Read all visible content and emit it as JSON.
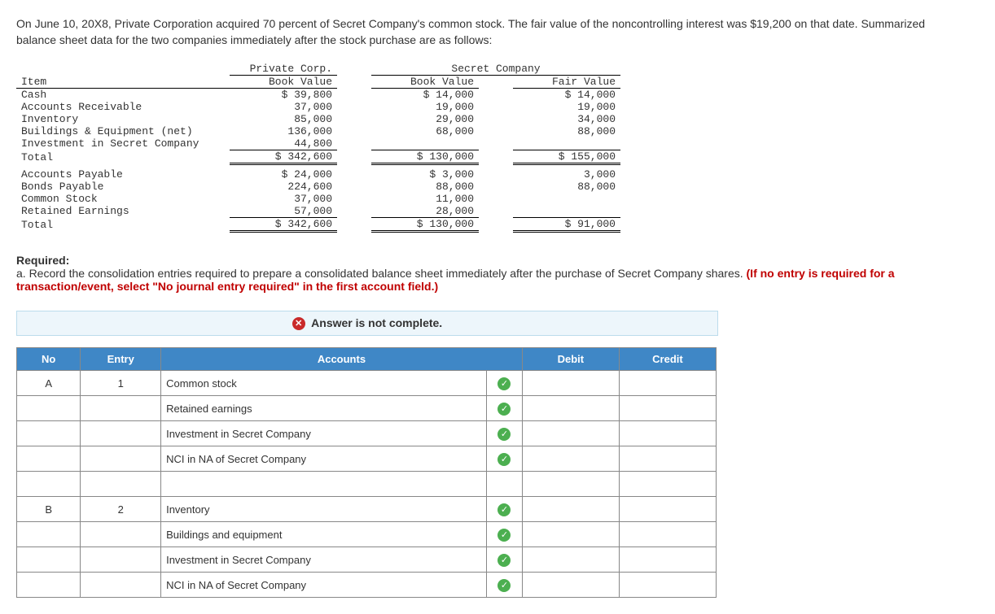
{
  "intro": "On June 10, 20X8, Private Corporation acquired 70 percent of Secret Company's common stock. The fair value of the noncontrolling interest was $19,200 on that date. Summarized balance sheet data for the two companies immediately after the stock purchase are as follows:",
  "balanceSheet": {
    "companyHeaders": {
      "private": "Private Corp.",
      "secret": "Secret Company"
    },
    "colHeaders": {
      "item": "Item",
      "bv": "Book Value",
      "fv": "Fair Value"
    },
    "rows": [
      {
        "item": "Cash",
        "pbv": "$ 39,800",
        "sbv": "$ 14,000",
        "sfv": "$ 14,000"
      },
      {
        "item": "Accounts Receivable",
        "pbv": "37,000",
        "sbv": "19,000",
        "sfv": "19,000"
      },
      {
        "item": "Inventory",
        "pbv": "85,000",
        "sbv": "29,000",
        "sfv": "34,000"
      },
      {
        "item": "Buildings & Equipment (net)",
        "pbv": "136,000",
        "sbv": "68,000",
        "sfv": "88,000"
      },
      {
        "item": "Investment in Secret Company",
        "pbv": "44,800",
        "sbv": "",
        "sfv": ""
      }
    ],
    "total1": {
      "item": "Total",
      "pbv": "$ 342,600",
      "sbv": "$ 130,000",
      "sfv": "$ 155,000"
    },
    "rows2": [
      {
        "item": "Accounts Payable",
        "pbv": "$ 24,000",
        "sbv": "$  3,000",
        "sfv": "3,000"
      },
      {
        "item": "Bonds Payable",
        "pbv": "224,600",
        "sbv": "88,000",
        "sfv": "88,000"
      },
      {
        "item": "Common Stock",
        "pbv": "37,000",
        "sbv": "11,000",
        "sfv": ""
      },
      {
        "item": "Retained Earnings",
        "pbv": "57,000",
        "sbv": "28,000",
        "sfv": ""
      }
    ],
    "total2": {
      "item": "Total",
      "pbv": "$ 342,600",
      "sbv": "$ 130,000",
      "sfv": "$ 91,000"
    }
  },
  "required": {
    "label": "Required:",
    "text": "a. Record the consolidation entries required to prepare a consolidated balance sheet immediately after the purchase of Secret Company shares. ",
    "red": "(If no entry is required for a transaction/event, select \"No journal entry required\" in the first account field.)"
  },
  "status": "Answer is not complete.",
  "je": {
    "headers": {
      "no": "No",
      "entry": "Entry",
      "accounts": "Accounts",
      "debit": "Debit",
      "credit": "Credit"
    },
    "groups": [
      {
        "no": "A",
        "entry": "1",
        "lines": [
          {
            "acct": "Common stock",
            "chk": true
          },
          {
            "acct": "Retained earnings",
            "chk": true
          },
          {
            "acct": "Investment in Secret Company",
            "chk": true
          },
          {
            "acct": "NCI in NA of Secret Company",
            "chk": true
          },
          {
            "acct": "",
            "chk": false
          }
        ]
      },
      {
        "no": "B",
        "entry": "2",
        "lines": [
          {
            "acct": "Inventory",
            "chk": true
          },
          {
            "acct": "Buildings and equipment",
            "chk": true
          },
          {
            "acct": "Investment in Secret Company",
            "chk": true
          },
          {
            "acct": "NCI in NA of Secret Company",
            "chk": true
          }
        ]
      }
    ]
  }
}
